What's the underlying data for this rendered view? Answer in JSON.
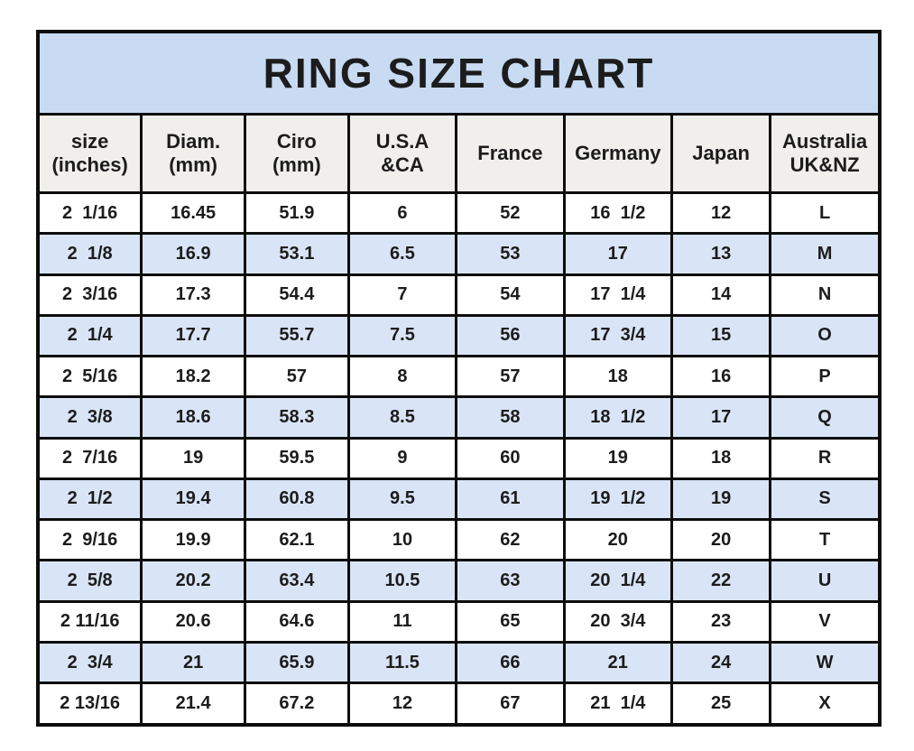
{
  "colors": {
    "title_bg": "#c8dbf3",
    "header_bg": "#f0efec",
    "alt_row_bg": "#d9e5f6",
    "border": "#0d0d0d",
    "text": "#1c1c1c"
  },
  "chart_data": {
    "type": "table",
    "title": "RING SIZE CHART",
    "columns": [
      "size (inches)",
      "Diam. (mm)",
      "Ciro (mm)",
      "U.S.A &CA",
      "France",
      "Germany",
      "Japan",
      "Australia UK&NZ"
    ],
    "header_lines": [
      [
        "size",
        "(inches)"
      ],
      [
        "Diam.",
        "(mm)"
      ],
      [
        "Ciro",
        "(mm)"
      ],
      [
        "U.S.A",
        "&CA"
      ],
      [
        "France"
      ],
      [
        "Germany"
      ],
      [
        "Japan"
      ],
      [
        "Australia",
        "UK&NZ"
      ]
    ],
    "rows": [
      [
        "2  1/16",
        "16.45",
        "51.9",
        "6",
        "52",
        "16  1/2",
        "12",
        "L"
      ],
      [
        "2  1/8",
        "16.9",
        "53.1",
        "6.5",
        "53",
        "17",
        "13",
        "M"
      ],
      [
        "2  3/16",
        "17.3",
        "54.4",
        "7",
        "54",
        "17  1/4",
        "14",
        "N"
      ],
      [
        "2  1/4",
        "17.7",
        "55.7",
        "7.5",
        "56",
        "17  3/4",
        "15",
        "O"
      ],
      [
        "2  5/16",
        "18.2",
        "57",
        "8",
        "57",
        "18",
        "16",
        "P"
      ],
      [
        "2  3/8",
        "18.6",
        "58.3",
        "8.5",
        "58",
        "18  1/2",
        "17",
        "Q"
      ],
      [
        "2  7/16",
        "19",
        "59.5",
        "9",
        "60",
        "19",
        "18",
        "R"
      ],
      [
        "2  1/2",
        "19.4",
        "60.8",
        "9.5",
        "61",
        "19  1/2",
        "19",
        "S"
      ],
      [
        "2  9/16",
        "19.9",
        "62.1",
        "10",
        "62",
        "20",
        "20",
        "T"
      ],
      [
        "2  5/8",
        "20.2",
        "63.4",
        "10.5",
        "63",
        "20  1/4",
        "22",
        "U"
      ],
      [
        "2 11/16",
        "20.6",
        "64.6",
        "11",
        "65",
        "20  3/4",
        "23",
        "V"
      ],
      [
        "2  3/4",
        "21",
        "65.9",
        "11.5",
        "66",
        "21",
        "24",
        "W"
      ],
      [
        "2 13/16",
        "21.4",
        "67.2",
        "12",
        "67",
        "21  1/4",
        "25",
        "X"
      ]
    ]
  }
}
